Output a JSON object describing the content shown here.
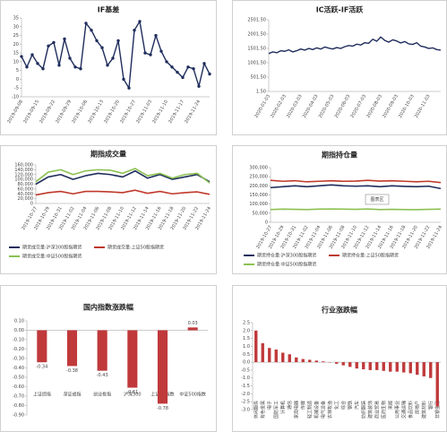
{
  "chart_data": [
    {
      "type": "line",
      "title": "IF基差",
      "color": "#1f2d5c",
      "markers": true,
      "categories": [
        "2019-09-08",
        null,
        null,
        "2019-09-15",
        null,
        null,
        "2019-09-22",
        null,
        null,
        "2019-09-29",
        null,
        null,
        "2019-10-06",
        null,
        null,
        "2019-10-13",
        null,
        null,
        "2019-10-20",
        null,
        null,
        "2019-10-27",
        null,
        null,
        "2019-11-03",
        null,
        null,
        "2019-11-10",
        null,
        null,
        "2019-11-17",
        null,
        null,
        "2019-11-24",
        null,
        null
      ],
      "values": [
        13,
        7,
        14,
        9,
        6,
        19,
        21,
        8,
        23,
        12,
        7,
        6,
        32,
        28,
        22,
        18,
        8,
        12,
        22,
        0,
        -5,
        28,
        33,
        15,
        14,
        25,
        16,
        10,
        7,
        4,
        1,
        7,
        6,
        -4,
        9,
        3
      ],
      "ylim": [
        -10,
        35
      ],
      "yticks": [
        -10,
        -5,
        0,
        5,
        10,
        15,
        20,
        25,
        30,
        35
      ],
      "grid": false
    },
    {
      "type": "line",
      "title": "IC活跃-IF活跃",
      "color": "#1f2d5c",
      "markers": false,
      "categories": [
        "2020-01-03",
        null,
        null,
        null,
        "2020-02-03",
        null,
        null,
        null,
        "2020-03-03",
        null,
        null,
        null,
        "2020-04-03",
        null,
        null,
        null,
        "2020-05-03",
        null,
        null,
        null,
        "2020-06-03",
        null,
        null,
        null,
        "2020-07-03",
        null,
        null,
        null,
        "2020-08-03",
        null,
        null,
        null,
        "2020-09-03",
        null,
        null,
        null,
        "2020-10-03",
        null,
        null,
        null,
        "2020-11-03",
        null,
        null,
        null
      ],
      "values": [
        1320,
        1380,
        1350,
        1420,
        1400,
        1450,
        1380,
        1420,
        1480,
        1440,
        1500,
        1460,
        1520,
        1480,
        1550,
        1510,
        1480,
        1530,
        1500,
        1560,
        1600,
        1580,
        1650,
        1620,
        1700,
        1680,
        1820,
        1750,
        1900,
        1780,
        1720,
        1800,
        1760,
        1690,
        1740,
        1660,
        1640,
        1700,
        1580,
        1550,
        1500,
        1520,
        1460,
        1440
      ],
      "ylim": [
        1.5,
        2501.5
      ],
      "yticks": [
        {
          "value": 1.5,
          "label": "1.50"
        },
        {
          "value": 501.5,
          "label": "501.50"
        },
        {
          "value": 1001.5,
          "label": "1001.50"
        },
        {
          "value": 1501.5,
          "label": "1501.50"
        },
        {
          "value": 2001.5,
          "label": "2001.50"
        },
        {
          "value": 2501.5,
          "label": "2501.50"
        }
      ],
      "grid": false
    },
    {
      "type": "line",
      "title": "期指成交量",
      "markers": false,
      "categories": [
        "2019-10-27",
        "2019-10-29",
        "2019-10-31",
        "2019-11-02",
        "2019-11-04",
        "2019-11-06",
        "2019-11-08",
        "2019-11-10",
        "2019-11-12",
        "2019-11-14",
        "2019-11-16",
        "2019-11-18",
        "2019-11-20",
        "2019-11-22",
        "2019-11-24"
      ],
      "series": [
        {
          "name": "期货成交量:沪深300股指期货",
          "color": "#1f2d5c",
          "values": [
            80000,
            110000,
            120000,
            100000,
            115000,
            125000,
            120000,
            110000,
            135000,
            105000,
            120000,
            100000,
            110000,
            120000,
            90000
          ]
        },
        {
          "name": "期货成交量:上证50股指期货",
          "color": "#c0392b",
          "values": [
            35000,
            45000,
            50000,
            40000,
            50000,
            50000,
            48000,
            45000,
            55000,
            42000,
            50000,
            40000,
            45000,
            48000,
            38000
          ]
        },
        {
          "name": "期货成交量:中证500股指期货",
          "color": "#8cc152",
          "values": [
            90000,
            130000,
            140000,
            120000,
            135000,
            140000,
            138000,
            125000,
            145000,
            115000,
            125000,
            105000,
            120000,
            125000,
            85000
          ]
        }
      ],
      "ylim": [
        0,
        160000
      ],
      "yticks": [
        0,
        {
          "value": 20000,
          "label": "20,000"
        },
        {
          "value": 40000,
          "label": "40,000"
        },
        {
          "value": 60000,
          "label": "60,000"
        },
        {
          "value": 80000,
          "label": "80,000"
        },
        {
          "value": 100000,
          "label": "100,000"
        },
        {
          "value": 120000,
          "label": "120,000"
        },
        {
          "value": 140000,
          "label": "140,000"
        },
        {
          "value": 160000,
          "label": "160,000"
        }
      ],
      "grid": false
    },
    {
      "type": "line",
      "title": "期指持仓量",
      "markers": false,
      "tooltip": "图表区",
      "categories": [
        "2019-10-27",
        "2019-10-29",
        "2019-10-31",
        "2019-11-02",
        "2019-11-04",
        "2019-11-06",
        "2019-11-08",
        "2019-11-10",
        "2019-11-12",
        "2019-11-14",
        "2019-11-16",
        "2019-11-18",
        "2019-11-20",
        "2019-11-22",
        "2019-11-24"
      ],
      "series": [
        {
          "name": "期货持仓量:沪深300股指期货",
          "color": "#1f2d5c",
          "values": [
            190000,
            195000,
            200000,
            195000,
            200000,
            205000,
            200000,
            198000,
            200000,
            195000,
            200000,
            197000,
            195000,
            198000,
            185000
          ]
        },
        {
          "name": "期货持仓量:上证50股指期货",
          "color": "#c0392b",
          "values": [
            230000,
            225000,
            228000,
            222000,
            225000,
            228000,
            225000,
            226000,
            230000,
            226000,
            228000,
            225000,
            222000,
            225000,
            218000
          ]
        },
        {
          "name": "期货持仓量:中证500股指期货",
          "color": "#8cc152",
          "values": [
            70000,
            72000,
            71000,
            70000,
            72000,
            73000,
            72000,
            71000,
            73000,
            70000,
            71000,
            70000,
            69000,
            71000,
            72000
          ]
        }
      ],
      "ylim": [
        0,
        300000
      ],
      "yticks": [
        0,
        {
          "value": 50000,
          "label": "50,000"
        },
        {
          "value": 100000,
          "label": "100,000"
        },
        {
          "value": 150000,
          "label": "150,000"
        },
        {
          "value": 200000,
          "label": "200,000"
        },
        {
          "value": 250000,
          "label": "250,000"
        },
        {
          "value": 300000,
          "label": "300,000"
        }
      ],
      "grid": false
    },
    {
      "type": "bar",
      "title": "国内指数涨跌幅",
      "color": "#c0393b",
      "data_labels": true,
      "categories": [
        "上证综指",
        "深证成指",
        "创业板指",
        "沪深300",
        "上证50指数",
        "中证500指数"
      ],
      "values": [
        -0.34,
        -0.38,
        -0.43,
        -0.61,
        -0.78,
        0.03
      ],
      "ylim": [
        -0.9,
        0.1
      ],
      "yticks": [
        {
          "value": 0.1,
          "label": "0.10"
        },
        {
          "value": 0,
          "label": "0.00"
        },
        {
          "value": -0.1,
          "label": "-0.10"
        },
        {
          "value": -0.2,
          "label": "-0.20"
        },
        {
          "value": -0.3,
          "label": "-0.30"
        },
        {
          "value": -0.4,
          "label": "-0.40"
        },
        {
          "value": -0.5,
          "label": "-0.50"
        },
        {
          "value": -0.6,
          "label": "-0.60"
        },
        {
          "value": -0.7,
          "label": "-0.70"
        },
        {
          "value": -0.8,
          "label": "-0.80"
        },
        {
          "value": -0.9,
          "label": "-0.90"
        }
      ],
      "grid": false
    },
    {
      "type": "bar",
      "title": "行业涨跌幅",
      "color": "#c0393b",
      "data_labels": false,
      "categories": [
        "休闲服务",
        "有色金属",
        "电子",
        "国防军工",
        "计算机",
        "通信",
        "家用电器",
        "传媒",
        "轻工制造",
        "机械设备",
        "电气设备",
        "农林牧渔",
        "化工",
        "综合",
        "钢铁",
        "汽车",
        "纺织服装",
        "建筑装饰",
        "商业贸易",
        "医药生物",
        "采掘",
        "公用事业",
        "交通运输",
        "食品饮料",
        "房地产",
        "建筑材料",
        "银行",
        "非银金融"
      ],
      "values": [
        2.0,
        1.2,
        0.9,
        0.8,
        0.6,
        0.5,
        0.3,
        0.2,
        0.15,
        0.1,
        0.05,
        0,
        -0.1,
        -0.2,
        -0.3,
        -0.4,
        -0.45,
        -0.5,
        -0.5,
        -0.55,
        -0.6,
        -0.6,
        -0.65,
        -0.7,
        -0.8,
        -0.9,
        -1.0,
        -2.8
      ],
      "ylim": [
        -3,
        2.5
      ],
      "yticks": [
        {
          "value": 2.5,
          "label": "2.5"
        },
        {
          "value": 2,
          "label": "2.0"
        },
        {
          "value": 1.5,
          "label": "1.5"
        },
        {
          "value": 1,
          "label": "1.0"
        },
        {
          "value": 0.5,
          "label": "0.5"
        },
        {
          "value": 0,
          "label": "0.0"
        },
        {
          "value": -0.5,
          "label": "-0.5"
        },
        {
          "value": -1,
          "label": "-1.0"
        },
        {
          "value": -1.5,
          "label": "-1.5"
        },
        {
          "value": -2,
          "label": "-2.0"
        },
        {
          "value": -2.5,
          "label": "-2.5"
        },
        {
          "value": -3,
          "label": "-3.0"
        }
      ],
      "grid": false
    }
  ]
}
